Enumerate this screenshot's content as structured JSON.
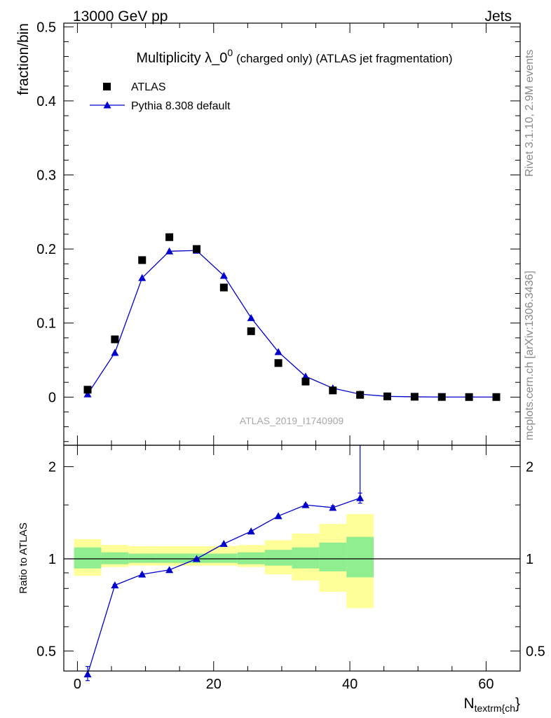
{
  "header": {
    "left": "13000 GeV pp",
    "right": "Jets"
  },
  "side_labels": {
    "rivet": "Rivet 3.1.10,  2.9M events",
    "mcplots": "mcplots.cern.ch [arXiv:1306.3436]"
  },
  "watermark": "ATLAS_2019_I1740909",
  "colors": {
    "data": "#000000",
    "mc": "#0000cc",
    "band_inner": "#90ee90",
    "band_outer": "#ffff99"
  },
  "chart_data": [
    {
      "type": "scatter",
      "panel": "main",
      "title_main": "Multiplicity λ_0",
      "title_sup": "0",
      "title_rest": " (charged only) (ATLAS jet fragmentation)",
      "ylabel": "fraction/bin",
      "xlabel": "",
      "xlim": [
        -2,
        65
      ],
      "ylim": [
        -0.065,
        0.505
      ],
      "yticks": [
        "0",
        "0.1",
        "0.2",
        "0.3",
        "0.4",
        "0.5"
      ],
      "legend_position": "top-left",
      "x": [
        1.5,
        5.5,
        9.5,
        13.5,
        17.5,
        21.5,
        25.5,
        29.5,
        33.5,
        37.5,
        41.5,
        45.5,
        49.5,
        53.5,
        57.5,
        61.5
      ],
      "series": [
        {
          "name": "ATLAS",
          "marker": "square",
          "values": [
            0.01,
            0.078,
            0.185,
            0.216,
            0.2,
            0.148,
            0.089,
            0.046,
            0.021,
            0.009,
            0.003,
            0.001,
            0.0005,
            0.0002,
            0.0001,
            0.0001
          ]
        },
        {
          "name": "Pythia 8.308 default",
          "marker": "triangle",
          "values": [
            0.004,
            0.06,
            0.161,
            0.197,
            0.198,
            0.164,
            0.107,
            0.061,
            0.028,
            0.012,
            0.004,
            0.001,
            0.0004,
            0.0001,
            0.0001,
            0.0001
          ]
        }
      ]
    },
    {
      "type": "line",
      "panel": "ratio",
      "ylabel": "Ratio to ATLAS",
      "xlabel": "N",
      "xlabel_sub": "textrm{ch",
      "xlabel_tail": "}",
      "xlim": [
        -2,
        65
      ],
      "ylim": [
        0.43,
        2.35
      ],
      "log_y": true,
      "yticks": [
        "0.5",
        "1",
        "2"
      ],
      "xticks": [
        "0",
        "20",
        "40",
        "60"
      ],
      "reference_line": 1,
      "x": [
        1.5,
        5.5,
        9.5,
        13.5,
        17.5,
        21.5,
        25.5,
        29.5,
        33.5,
        37.5,
        41.5
      ],
      "series": [
        {
          "name": "Pythia 8.308 default",
          "values": [
            0.42,
            0.82,
            0.89,
            0.92,
            1.0,
            1.12,
            1.23,
            1.38,
            1.5,
            1.47,
            1.58
          ],
          "errors_up": [
            0.025,
            0.005,
            0.005,
            0.005,
            0.005,
            0.005,
            0.005,
            0.005,
            0.01,
            0.02,
            0.06
          ],
          "errors_down": [
            0.02,
            0.005,
            0.005,
            0.005,
            0.005,
            0.005,
            0.005,
            0.005,
            0.01,
            0.02,
            0.06
          ]
        }
      ],
      "bands": {
        "bin_edges": [
          -0.5,
          3.5,
          7.5,
          11.5,
          15.5,
          19.5,
          23.5,
          27.5,
          31.5,
          35.5,
          39.5,
          43.5
        ],
        "inner_low": [
          0.93,
          0.96,
          0.97,
          0.97,
          0.97,
          0.97,
          0.96,
          0.95,
          0.93,
          0.91,
          0.87
        ],
        "inner_high": [
          1.09,
          1.05,
          1.04,
          1.04,
          1.04,
          1.04,
          1.05,
          1.07,
          1.09,
          1.13,
          1.18
        ],
        "outer_low": [
          0.88,
          0.94,
          0.95,
          0.95,
          0.95,
          0.95,
          0.94,
          0.89,
          0.85,
          0.78,
          0.69
        ],
        "outer_high": [
          1.16,
          1.11,
          1.1,
          1.1,
          1.1,
          1.1,
          1.11,
          1.15,
          1.21,
          1.3,
          1.4
        ]
      }
    }
  ]
}
